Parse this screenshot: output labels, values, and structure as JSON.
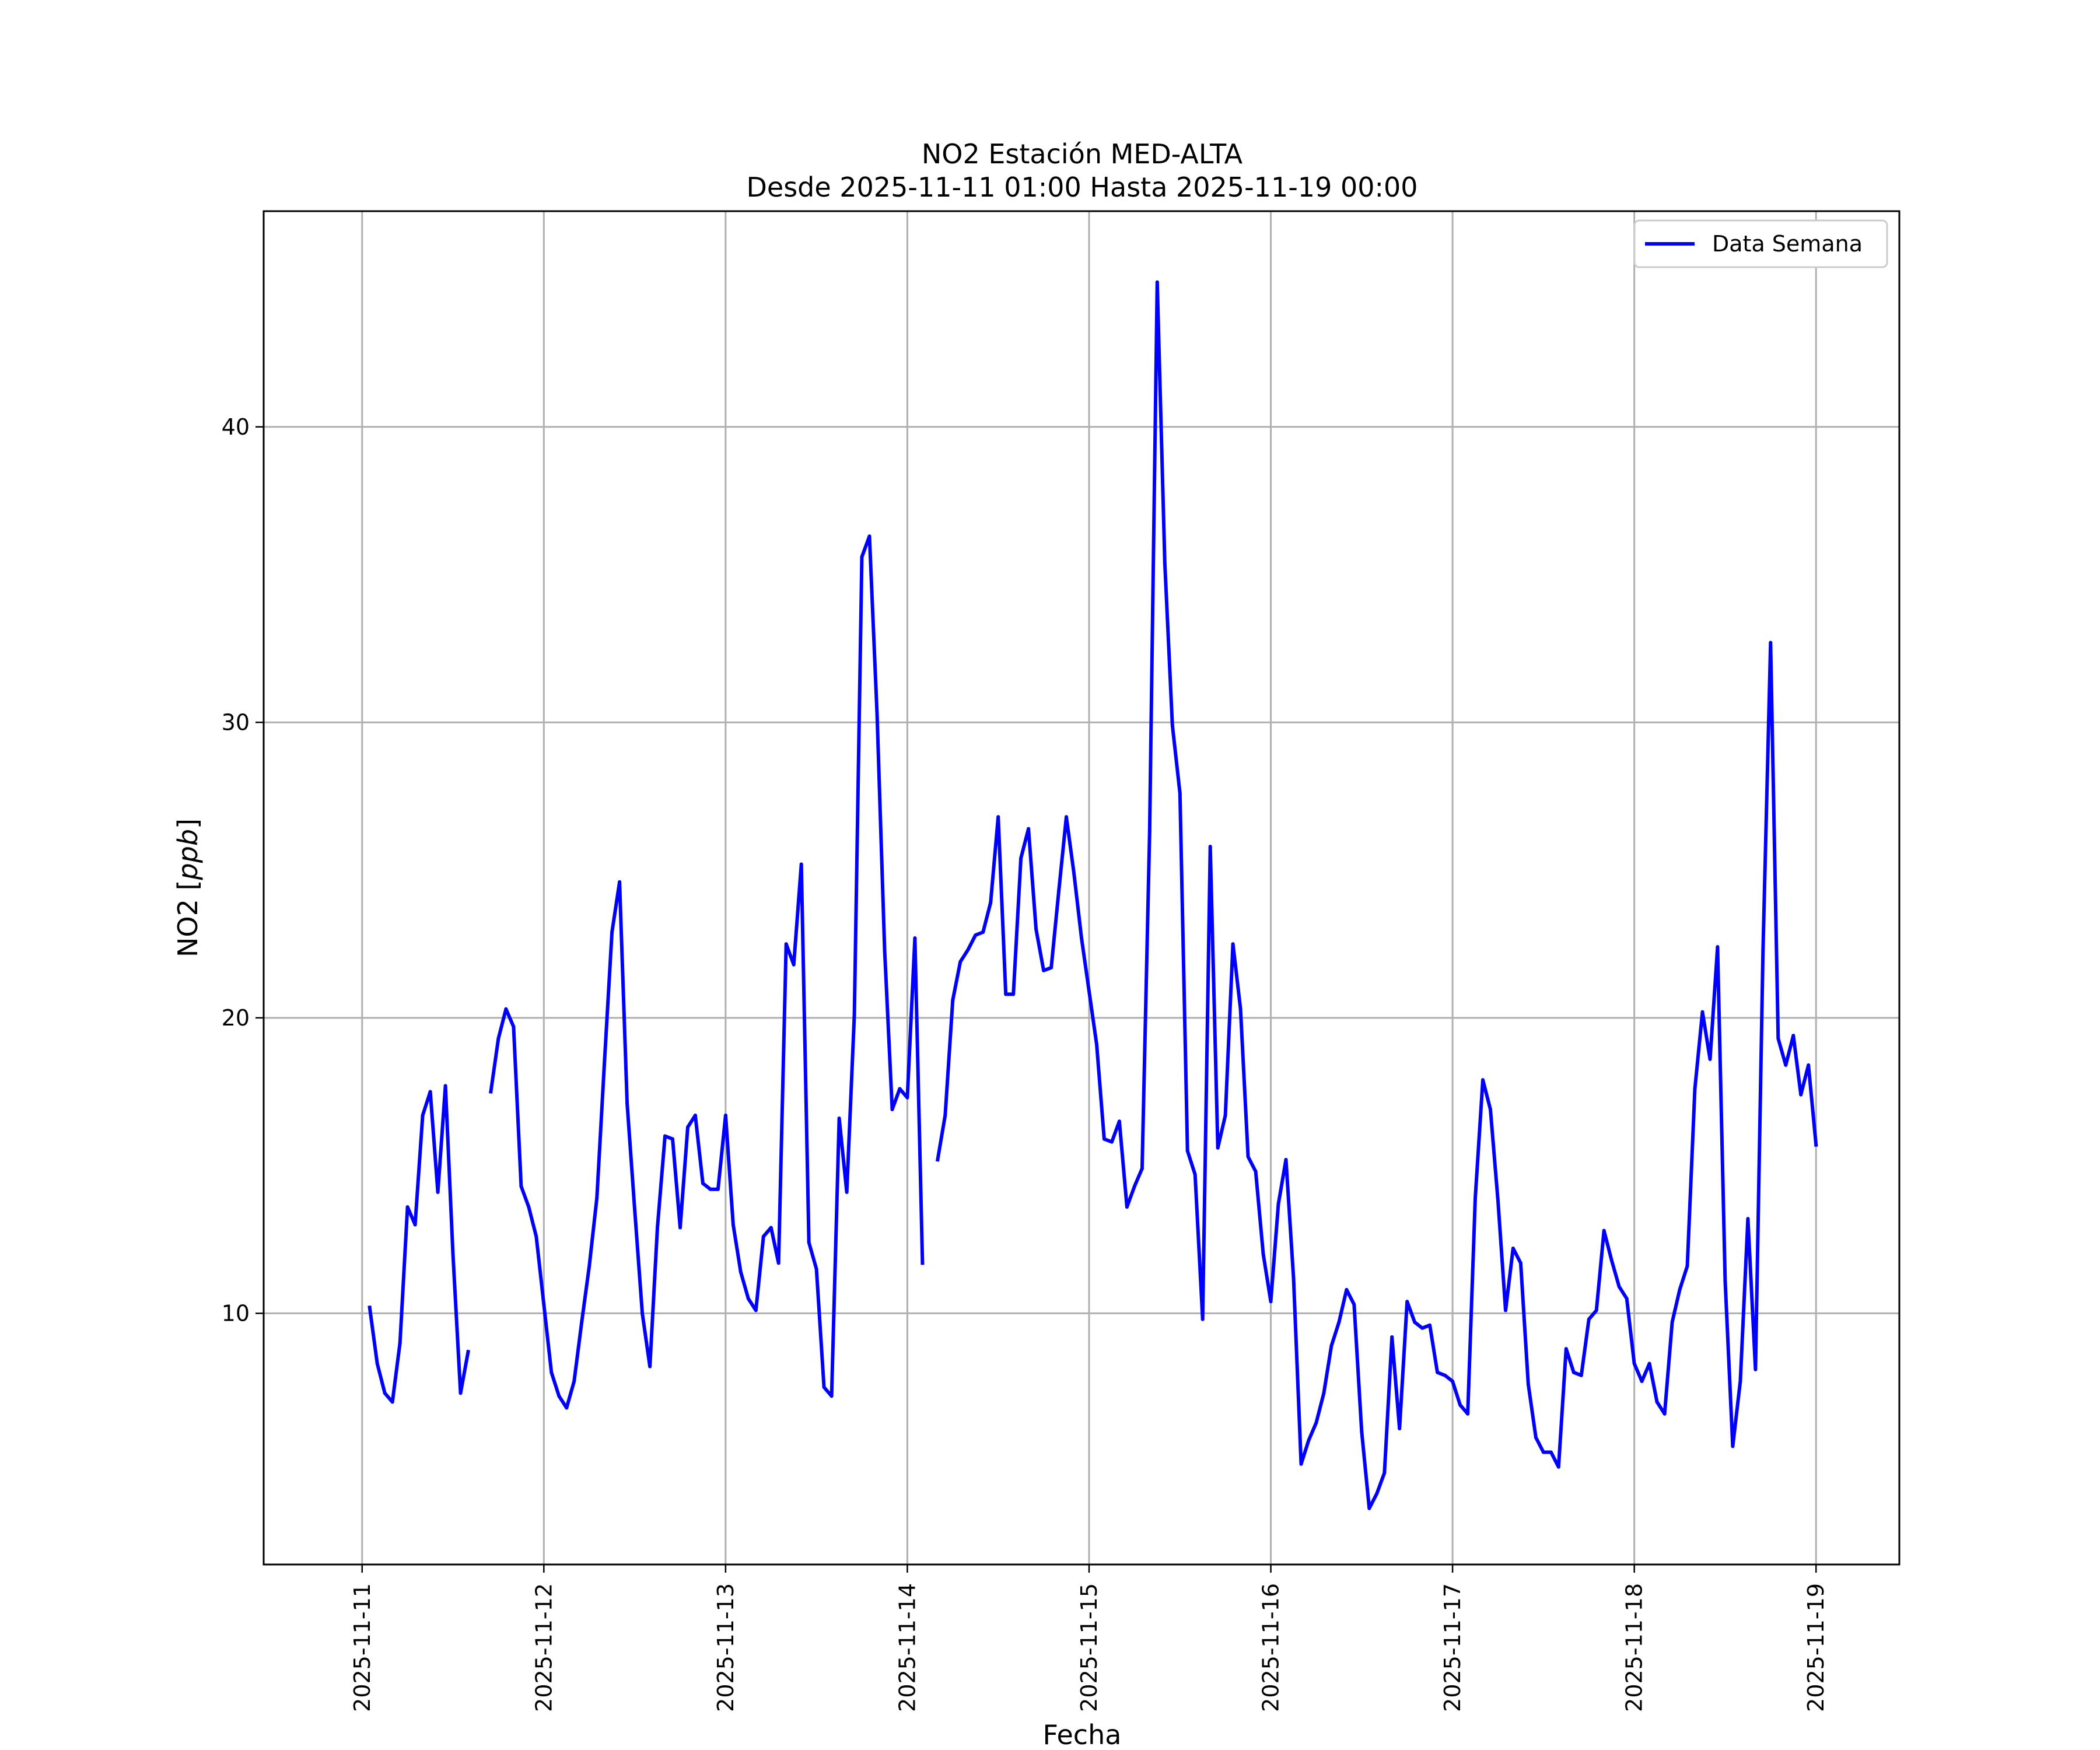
{
  "chart_data": {
    "type": "line",
    "title": "NO2 Estación MED-ALTA",
    "subtitle": "Desde 2025-11-11 01:00 Hasta 2025-11-19 00:00",
    "xlabel": "Fecha",
    "ylabel_prefix": "NO2 [",
    "ylabel_unit": "ppb",
    "ylabel_suffix": "]",
    "x_ticks": [
      "2025-11-11",
      "2025-11-12",
      "2025-11-13",
      "2025-11-14",
      "2025-11-15",
      "2025-11-16",
      "2025-11-17",
      "2025-11-18",
      "2025-11-19"
    ],
    "y_ticks": [
      10,
      20,
      30,
      40
    ],
    "xlim": [
      "2025-11-10 11:00",
      "2025-11-19 11:00"
    ],
    "ylim": [
      1.5,
      47.3
    ],
    "grid": true,
    "legend_position": "top-right",
    "series": [
      {
        "name": "Data Semana",
        "color": "#0000ff",
        "points": [
          [
            "2025-11-11 01:00",
            10.2
          ],
          [
            "2025-11-11 02:00",
            8.3
          ],
          [
            "2025-11-11 03:00",
            7.3
          ],
          [
            "2025-11-11 04:00",
            7.0
          ],
          [
            "2025-11-11 05:00",
            9.0
          ],
          [
            "2025-11-11 06:00",
            13.6
          ],
          [
            "2025-11-11 07:00",
            13.0
          ],
          [
            "2025-11-11 08:00",
            16.7
          ],
          [
            "2025-11-11 09:00",
            17.5
          ],
          [
            "2025-11-11 10:00",
            14.1
          ],
          [
            "2025-11-11 11:00",
            17.7
          ],
          [
            "2025-11-11 12:00",
            12.0
          ],
          [
            "2025-11-11 13:00",
            7.3
          ],
          [
            "2025-11-11 14:00",
            8.7
          ],
          [
            "2025-11-11 15:00",
            null
          ],
          [
            "2025-11-11 16:00",
            null
          ],
          [
            "2025-11-11 17:00",
            17.5
          ],
          [
            "2025-11-11 18:00",
            19.3
          ],
          [
            "2025-11-11 19:00",
            20.3
          ],
          [
            "2025-11-11 20:00",
            19.7
          ],
          [
            "2025-11-11 21:00",
            14.3
          ],
          [
            "2025-11-11 22:00",
            13.6
          ],
          [
            "2025-11-11 23:00",
            12.6
          ],
          [
            "2025-11-12 00:00",
            10.3
          ],
          [
            "2025-11-12 01:00",
            8.0
          ],
          [
            "2025-11-12 02:00",
            7.2
          ],
          [
            "2025-11-12 03:00",
            6.8
          ],
          [
            "2025-11-12 04:00",
            7.7
          ],
          [
            "2025-11-12 05:00",
            9.7
          ],
          [
            "2025-11-12 06:00",
            11.6
          ],
          [
            "2025-11-12 07:00",
            13.9
          ],
          [
            "2025-11-12 08:00",
            18.5
          ],
          [
            "2025-11-12 09:00",
            22.9
          ],
          [
            "2025-11-12 10:00",
            24.6
          ],
          [
            "2025-11-12 11:00",
            17.1
          ],
          [
            "2025-11-12 12:00",
            13.5
          ],
          [
            "2025-11-12 13:00",
            10.0
          ],
          [
            "2025-11-12 14:00",
            8.2
          ],
          [
            "2025-11-12 15:00",
            12.9
          ],
          [
            "2025-11-12 16:00",
            16.0
          ],
          [
            "2025-11-12 17:00",
            15.9
          ],
          [
            "2025-11-12 18:00",
            12.9
          ],
          [
            "2025-11-12 19:00",
            16.3
          ],
          [
            "2025-11-12 20:00",
            16.7
          ],
          [
            "2025-11-12 21:00",
            14.4
          ],
          [
            "2025-11-12 22:00",
            14.2
          ],
          [
            "2025-11-12 23:00",
            14.2
          ],
          [
            "2025-11-13 00:00",
            16.7
          ],
          [
            "2025-11-13 01:00",
            13.0
          ],
          [
            "2025-11-13 02:00",
            11.4
          ],
          [
            "2025-11-13 03:00",
            10.5
          ],
          [
            "2025-11-13 04:00",
            10.1
          ],
          [
            "2025-11-13 05:00",
            12.6
          ],
          [
            "2025-11-13 06:00",
            12.9
          ],
          [
            "2025-11-13 07:00",
            11.7
          ],
          [
            "2025-11-13 08:00",
            22.5
          ],
          [
            "2025-11-13 09:00",
            21.8
          ],
          [
            "2025-11-13 10:00",
            25.2
          ],
          [
            "2025-11-13 11:00",
            12.4
          ],
          [
            "2025-11-13 12:00",
            11.5
          ],
          [
            "2025-11-13 13:00",
            7.5
          ],
          [
            "2025-11-13 14:00",
            7.2
          ],
          [
            "2025-11-13 15:00",
            16.6
          ],
          [
            "2025-11-13 16:00",
            14.1
          ],
          [
            "2025-11-13 17:00",
            20.1
          ],
          [
            "2025-11-13 18:00",
            35.6
          ],
          [
            "2025-11-13 19:00",
            36.3
          ],
          [
            "2025-11-13 20:00",
            30.3
          ],
          [
            "2025-11-13 21:00",
            22.3
          ],
          [
            "2025-11-13 22:00",
            16.9
          ],
          [
            "2025-11-13 23:00",
            17.6
          ],
          [
            "2025-11-14 00:00",
            17.3
          ],
          [
            "2025-11-14 01:00",
            22.7
          ],
          [
            "2025-11-14 02:00",
            11.7
          ],
          [
            "2025-11-14 03:00",
            null
          ],
          [
            "2025-11-14 04:00",
            15.2
          ],
          [
            "2025-11-14 05:00",
            16.7
          ],
          [
            "2025-11-14 06:00",
            20.6
          ],
          [
            "2025-11-14 07:00",
            21.9
          ],
          [
            "2025-11-14 08:00",
            22.3
          ],
          [
            "2025-11-14 09:00",
            22.8
          ],
          [
            "2025-11-14 10:00",
            22.9
          ],
          [
            "2025-11-14 11:00",
            23.9
          ],
          [
            "2025-11-14 12:00",
            26.8
          ],
          [
            "2025-11-14 13:00",
            20.8
          ],
          [
            "2025-11-14 14:00",
            20.8
          ],
          [
            "2025-11-14 15:00",
            25.4
          ],
          [
            "2025-11-14 16:00",
            26.4
          ],
          [
            "2025-11-14 17:00",
            23.0
          ],
          [
            "2025-11-14 18:00",
            21.6
          ],
          [
            "2025-11-14 19:00",
            21.7
          ],
          [
            "2025-11-14 20:00",
            24.3
          ],
          [
            "2025-11-14 21:00",
            26.8
          ],
          [
            "2025-11-14 22:00",
            24.9
          ],
          [
            "2025-11-14 23:00",
            22.7
          ],
          [
            "2025-11-15 00:00",
            20.9
          ],
          [
            "2025-11-15 01:00",
            19.1
          ],
          [
            "2025-11-15 02:00",
            15.9
          ],
          [
            "2025-11-15 03:00",
            15.8
          ],
          [
            "2025-11-15 04:00",
            16.5
          ],
          [
            "2025-11-15 05:00",
            13.6
          ],
          [
            "2025-11-15 06:00",
            14.3
          ],
          [
            "2025-11-15 07:00",
            14.9
          ],
          [
            "2025-11-15 08:00",
            26.3
          ],
          [
            "2025-11-15 09:00",
            44.9
          ],
          [
            "2025-11-15 10:00",
            35.4
          ],
          [
            "2025-11-15 11:00",
            29.9
          ],
          [
            "2025-11-15 12:00",
            27.6
          ],
          [
            "2025-11-15 13:00",
            15.5
          ],
          [
            "2025-11-15 14:00",
            14.7
          ],
          [
            "2025-11-15 15:00",
            9.8
          ],
          [
            "2025-11-15 16:00",
            25.8
          ],
          [
            "2025-11-15 17:00",
            15.6
          ],
          [
            "2025-11-15 18:00",
            16.7
          ],
          [
            "2025-11-15 19:00",
            22.5
          ],
          [
            "2025-11-15 20:00",
            20.3
          ],
          [
            "2025-11-15 21:00",
            15.3
          ],
          [
            "2025-11-15 22:00",
            14.8
          ],
          [
            "2025-11-15 23:00",
            12.0
          ],
          [
            "2025-11-16 00:00",
            10.4
          ],
          [
            "2025-11-16 01:00",
            13.7
          ],
          [
            "2025-11-16 02:00",
            15.2
          ],
          [
            "2025-11-16 03:00",
            11.2
          ],
          [
            "2025-11-16 04:00",
            4.9
          ],
          [
            "2025-11-16 05:00",
            5.7
          ],
          [
            "2025-11-16 06:00",
            6.3
          ],
          [
            "2025-11-16 07:00",
            7.3
          ],
          [
            "2025-11-16 08:00",
            8.9
          ],
          [
            "2025-11-16 09:00",
            9.7
          ],
          [
            "2025-11-16 10:00",
            10.8
          ],
          [
            "2025-11-16 11:00",
            10.3
          ],
          [
            "2025-11-16 12:00",
            6.0
          ],
          [
            "2025-11-16 13:00",
            3.4
          ],
          [
            "2025-11-16 14:00",
            3.9
          ],
          [
            "2025-11-16 15:00",
            4.6
          ],
          [
            "2025-11-16 16:00",
            9.2
          ],
          [
            "2025-11-16 17:00",
            6.1
          ],
          [
            "2025-11-16 18:00",
            10.4
          ],
          [
            "2025-11-16 19:00",
            9.7
          ],
          [
            "2025-11-16 20:00",
            9.5
          ],
          [
            "2025-11-16 21:00",
            9.6
          ],
          [
            "2025-11-16 22:00",
            8.0
          ],
          [
            "2025-11-16 23:00",
            7.9
          ],
          [
            "2025-11-17 00:00",
            7.7
          ],
          [
            "2025-11-17 01:00",
            6.9
          ],
          [
            "2025-11-17 02:00",
            6.6
          ],
          [
            "2025-11-17 03:00",
            13.9
          ],
          [
            "2025-11-17 04:00",
            17.9
          ],
          [
            "2025-11-17 05:00",
            16.9
          ],
          [
            "2025-11-17 06:00",
            13.8
          ],
          [
            "2025-11-17 07:00",
            10.1
          ],
          [
            "2025-11-17 08:00",
            12.2
          ],
          [
            "2025-11-17 09:00",
            11.7
          ],
          [
            "2025-11-17 10:00",
            7.6
          ],
          [
            "2025-11-17 11:00",
            5.8
          ],
          [
            "2025-11-17 12:00",
            5.3
          ],
          [
            "2025-11-17 13:00",
            5.3
          ],
          [
            "2025-11-17 14:00",
            4.8
          ],
          [
            "2025-11-17 15:00",
            8.8
          ],
          [
            "2025-11-17 16:00",
            8.0
          ],
          [
            "2025-11-17 17:00",
            7.9
          ],
          [
            "2025-11-17 18:00",
            9.8
          ],
          [
            "2025-11-17 19:00",
            10.1
          ],
          [
            "2025-11-17 20:00",
            12.8
          ],
          [
            "2025-11-17 21:00",
            11.8
          ],
          [
            "2025-11-17 22:00",
            10.9
          ],
          [
            "2025-11-17 23:00",
            10.5
          ],
          [
            "2025-11-18 00:00",
            8.3
          ],
          [
            "2025-11-18 01:00",
            7.7
          ],
          [
            "2025-11-18 02:00",
            8.3
          ],
          [
            "2025-11-18 03:00",
            7.0
          ],
          [
            "2025-11-18 04:00",
            6.6
          ],
          [
            "2025-11-18 05:00",
            9.7
          ],
          [
            "2025-11-18 06:00",
            10.8
          ],
          [
            "2025-11-18 07:00",
            11.6
          ],
          [
            "2025-11-18 08:00",
            17.6
          ],
          [
            "2025-11-18 09:00",
            20.2
          ],
          [
            "2025-11-18 10:00",
            18.6
          ],
          [
            "2025-11-18 11:00",
            22.4
          ],
          [
            "2025-11-18 12:00",
            11.1
          ],
          [
            "2025-11-18 13:00",
            5.5
          ],
          [
            "2025-11-18 14:00",
            7.7
          ],
          [
            "2025-11-18 15:00",
            13.2
          ],
          [
            "2025-11-18 16:00",
            8.1
          ],
          [
            "2025-11-18 17:00",
            22.3
          ],
          [
            "2025-11-18 18:00",
            32.7
          ],
          [
            "2025-11-18 19:00",
            19.3
          ],
          [
            "2025-11-18 20:00",
            18.4
          ],
          [
            "2025-11-18 21:00",
            19.4
          ],
          [
            "2025-11-18 22:00",
            17.4
          ],
          [
            "2025-11-18 23:00",
            18.4
          ],
          [
            "2025-11-19 00:00",
            15.7
          ]
        ]
      }
    ]
  }
}
